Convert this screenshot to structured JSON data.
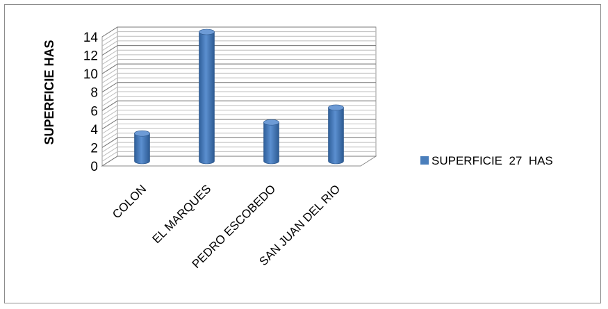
{
  "chart_data": {
    "type": "bar",
    "style": "3d-cylinder",
    "categories": [
      "COLON",
      "EL MARQUES",
      "PEDRO ESCOBEDO",
      "SAN JUAN DEL RIO"
    ],
    "series": [
      {
        "name": "SUPERFICIE  27  HAS",
        "values": [
          3,
          14,
          4.2,
          5.8
        ],
        "color": "#4a7ebb"
      }
    ],
    "ylabel": "SUPERFICIE HAS",
    "xlabel": "",
    "ylim": [
      0,
      14
    ],
    "yticks": [
      "0",
      "2",
      "4",
      "6",
      "8",
      "10",
      "12",
      "14"
    ],
    "grid": true,
    "legend": "right"
  }
}
